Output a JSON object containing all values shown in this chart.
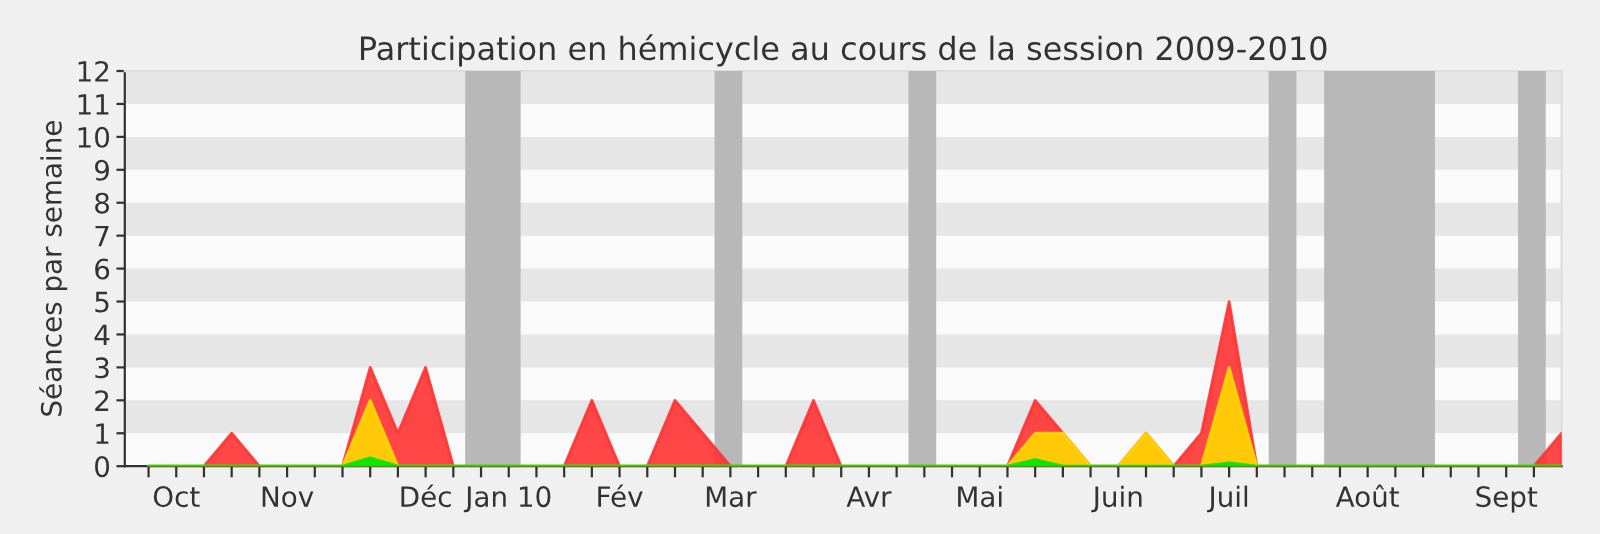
{
  "chart_data": {
    "type": "area",
    "title": "Participation en hémicycle au cours de la session 2009-2010",
    "ylabel": "Séances par semaine",
    "x": [
      "2009-10-05",
      "2009-10-12",
      "2009-10-19",
      "2009-10-26",
      "2009-11-02",
      "2009-11-09",
      "2009-11-16",
      "2009-11-23",
      "2009-11-30",
      "2009-12-07",
      "2009-12-14",
      "2009-12-21",
      "2009-12-28",
      "2010-01-04",
      "2010-01-11",
      "2010-01-18",
      "2010-01-25",
      "2010-02-01",
      "2010-02-08",
      "2010-02-15",
      "2010-02-22",
      "2010-03-01",
      "2010-03-08",
      "2010-03-15",
      "2010-03-22",
      "2010-03-29",
      "2010-04-05",
      "2010-04-12",
      "2010-04-19",
      "2010-04-26",
      "2010-05-03",
      "2010-05-10",
      "2010-05-17",
      "2010-05-24",
      "2010-05-31",
      "2010-06-07",
      "2010-06-14",
      "2010-06-21",
      "2010-06-28",
      "2010-07-05",
      "2010-07-12",
      "2010-07-19",
      "2010-07-26",
      "2010-08-02",
      "2010-08-09",
      "2010-08-16",
      "2010-08-23",
      "2010-08-30",
      "2010-09-06",
      "2010-09-13",
      "2010-09-20",
      "2010-09-27"
    ],
    "series": [
      {
        "color": "#ff3333",
        "values": [
          0,
          0,
          0,
          1,
          0,
          0,
          0,
          0,
          3,
          1,
          3,
          0,
          0,
          0,
          0,
          0,
          2,
          0,
          0,
          2,
          1,
          0,
          0,
          0,
          2,
          0,
          0,
          0,
          0,
          0,
          0,
          0,
          2,
          1,
          0,
          0,
          1,
          0,
          1,
          5,
          0,
          0,
          0,
          0,
          0,
          0,
          0,
          0,
          0,
          0,
          0,
          1
        ]
      },
      {
        "color": "#ffd700",
        "values": [
          0,
          0,
          0,
          0,
          0,
          0,
          0,
          0,
          2,
          0,
          0,
          0,
          0,
          0,
          0,
          0,
          0,
          0,
          0,
          0,
          0,
          0,
          0,
          0,
          0,
          0,
          0,
          0,
          0,
          0,
          0,
          0,
          1,
          1,
          0,
          0,
          1,
          0,
          0,
          3,
          0,
          0,
          0,
          0,
          0,
          0,
          0,
          0,
          0,
          0,
          0,
          0
        ]
      },
      {
        "color": "#00e600",
        "values": [
          0,
          0,
          0,
          0,
          0,
          0,
          0,
          0,
          0.25,
          0,
          0,
          0,
          0,
          0,
          0,
          0,
          0,
          0,
          0,
          0,
          0,
          0,
          0,
          0,
          0,
          0,
          0,
          0,
          0,
          0,
          0,
          0,
          0.2,
          0,
          0,
          0,
          0,
          0,
          0,
          0.1,
          0,
          0,
          0,
          0,
          0,
          0,
          0,
          0,
          0,
          0,
          0,
          0
        ]
      }
    ],
    "xlim": [
      "2009-09-29",
      "2010-09-27"
    ],
    "xticks": [
      {
        "value": "2009-10-05",
        "label": null
      },
      {
        "value": "2009-10-12",
        "label": "Oct"
      },
      {
        "value": "2009-10-19",
        "label": null
      },
      {
        "value": "2009-10-26",
        "label": null
      },
      {
        "value": "2009-11-02",
        "label": null
      },
      {
        "value": "2009-11-09",
        "label": "Nov"
      },
      {
        "value": "2009-11-16",
        "label": null
      },
      {
        "value": "2009-11-23",
        "label": null
      },
      {
        "value": "2009-11-30",
        "label": null
      },
      {
        "value": "2009-12-07",
        "label": null
      },
      {
        "value": "2009-12-14",
        "label": "Déc"
      },
      {
        "value": "2009-12-21",
        "label": null
      },
      {
        "value": "2009-12-28",
        "label": null
      },
      {
        "value": "2010-01-04",
        "label": "Jan 10"
      },
      {
        "value": "2010-01-11",
        "label": null
      },
      {
        "value": "2010-01-18",
        "label": null
      },
      {
        "value": "2010-01-25",
        "label": null
      },
      {
        "value": "2010-02-01",
        "label": "Fév"
      },
      {
        "value": "2010-02-08",
        "label": null
      },
      {
        "value": "2010-02-15",
        "label": null
      },
      {
        "value": "2010-02-22",
        "label": null
      },
      {
        "value": "2010-03-01",
        "label": "Mar"
      },
      {
        "value": "2010-03-08",
        "label": null
      },
      {
        "value": "2010-03-15",
        "label": null
      },
      {
        "value": "2010-03-22",
        "label": null
      },
      {
        "value": "2010-03-29",
        "label": null
      },
      {
        "value": "2010-04-05",
        "label": "Avr"
      },
      {
        "value": "2010-04-12",
        "label": null
      },
      {
        "value": "2010-04-19",
        "label": null
      },
      {
        "value": "2010-04-26",
        "label": null
      },
      {
        "value": "2010-05-03",
        "label": "Mai"
      },
      {
        "value": "2010-05-10",
        "label": null
      },
      {
        "value": "2010-05-17",
        "label": null
      },
      {
        "value": "2010-05-24",
        "label": null
      },
      {
        "value": "2010-05-31",
        "label": null
      },
      {
        "value": "2010-06-07",
        "label": "Juin"
      },
      {
        "value": "2010-06-14",
        "label": null
      },
      {
        "value": "2010-06-21",
        "label": null
      },
      {
        "value": "2010-06-28",
        "label": null
      },
      {
        "value": "2010-07-05",
        "label": "Juil"
      },
      {
        "value": "2010-07-12",
        "label": null
      },
      {
        "value": "2010-07-19",
        "label": null
      },
      {
        "value": "2010-07-26",
        "label": null
      },
      {
        "value": "2010-08-02",
        "label": null
      },
      {
        "value": "2010-08-09",
        "label": "Août"
      },
      {
        "value": "2010-08-16",
        "label": null
      },
      {
        "value": "2010-08-23",
        "label": null
      },
      {
        "value": "2010-08-30",
        "label": null
      },
      {
        "value": "2010-09-06",
        "label": null
      },
      {
        "value": "2010-09-13",
        "label": "Sept"
      },
      {
        "value": "2010-09-20",
        "label": null
      }
    ],
    "ylim": [
      0,
      12
    ],
    "yticks": [
      0,
      1,
      2,
      3,
      4,
      5,
      6,
      7,
      8,
      9,
      10,
      11,
      12
    ],
    "bands": [
      {
        "axis": "y",
        "from": 1,
        "to": 2,
        "color": "#e6e6e6"
      },
      {
        "axis": "y",
        "from": 3,
        "to": 4,
        "color": "#e6e6e6"
      },
      {
        "axis": "y",
        "from": 5,
        "to": 6,
        "color": "#e6e6e6"
      },
      {
        "axis": "y",
        "from": 7,
        "to": 8,
        "color": "#e6e6e6"
      },
      {
        "axis": "y",
        "from": 9,
        "to": 10,
        "color": "#e6e6e6"
      },
      {
        "axis": "y",
        "from": 11,
        "to": 12,
        "color": "#e6e6e6"
      },
      {
        "axis": "x",
        "from": "2009-12-24",
        "to": "2010-01-07",
        "color": "#b8b8b8"
      },
      {
        "axis": "x",
        "from": "2010-02-25",
        "to": "2010-03-04",
        "color": "#b8b8b8"
      },
      {
        "axis": "x",
        "from": "2010-04-15",
        "to": "2010-04-22",
        "color": "#b8b8b8"
      },
      {
        "axis": "x",
        "from": "2010-07-15",
        "to": "2010-07-22",
        "color": "#b8b8b8"
      },
      {
        "axis": "x",
        "from": "2010-07-29",
        "to": "2010-08-26",
        "color": "#b8b8b8"
      },
      {
        "axis": "x",
        "from": "2010-09-16",
        "to": "2010-09-23",
        "color": "#b8b8b8"
      }
    ],
    "grid": false,
    "legend": false
  }
}
